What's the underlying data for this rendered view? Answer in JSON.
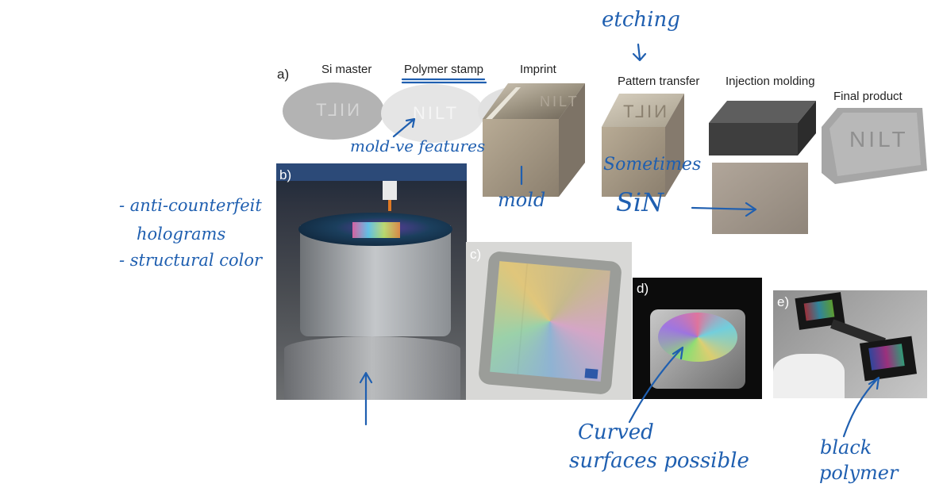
{
  "figure": {
    "panel_a": {
      "letter": "a)",
      "step_labels": [
        "Si master",
        "Polymer stamp",
        "Imprint",
        "Pattern transfer",
        "Injection molding",
        "Final product"
      ],
      "engraved_text": [
        "NILT",
        "NILT",
        "NILT",
        "NILT",
        "NILT"
      ]
    },
    "panel_letters": {
      "b": "b)",
      "c": "c)",
      "d": "d)",
      "e": "e)"
    }
  },
  "annotations": {
    "etching": "etching",
    "mold_features": "mold-ve features",
    "mold": "mold",
    "sometimes": "Sometimes",
    "sin": "SiN",
    "left_notes": [
      "- anti-counterfeit",
      "holograms",
      "- structural color"
    ],
    "curved": [
      "Curved",
      "surfaces possible"
    ],
    "black": [
      "black",
      "polymer"
    ]
  },
  "colors": {
    "ink": "#1f5fb0",
    "gray_part": "#bdbdbd",
    "metal": "#9a9a9a",
    "black_bg": "#0c0c0c"
  }
}
